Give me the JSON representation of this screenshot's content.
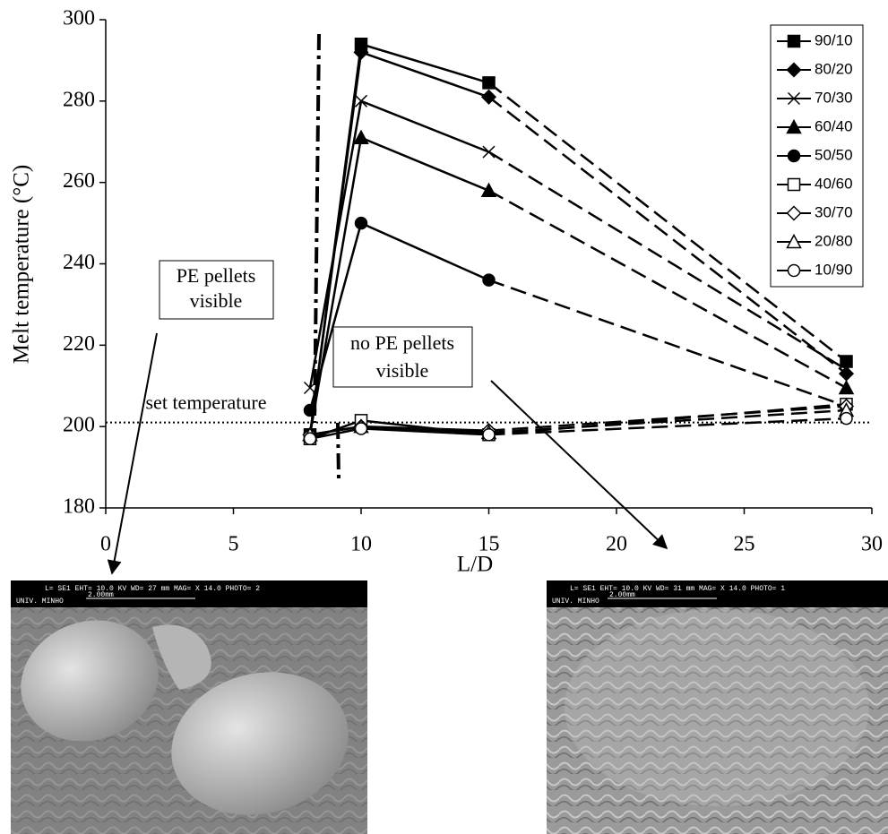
{
  "chart_data": {
    "type": "line",
    "x_label": "L/D",
    "y_label": "Melt temperature (°C)",
    "xlim": [
      0,
      30
    ],
    "ylim": [
      180,
      300
    ],
    "xticks": [
      0,
      5,
      10,
      15,
      20,
      25,
      30
    ],
    "yticks": [
      180,
      200,
      220,
      240,
      260,
      280,
      300
    ],
    "x": [
      8,
      10,
      15,
      29
    ],
    "series": [
      {
        "name": "90/10",
        "color": "#000000",
        "marker": "square",
        "filled": true,
        "values": [
          198,
          294,
          284.5,
          216
        ]
      },
      {
        "name": "80/20",
        "color": "#000000",
        "marker": "diamond",
        "filled": true,
        "values": [
          198,
          292,
          281,
          213
        ]
      },
      {
        "name": "70/30",
        "color": "#000000",
        "marker": "cross",
        "filled": true,
        "values": [
          209.5,
          280,
          267.5,
          214
        ]
      },
      {
        "name": "60/40",
        "color": "#000000",
        "marker": "triangle",
        "filled": true,
        "values": [
          198,
          271,
          258,
          209.5
        ]
      },
      {
        "name": "50/50",
        "color": "#000000",
        "marker": "circle",
        "filled": true,
        "values": [
          204,
          250,
          236,
          205
        ]
      },
      {
        "name": "40/60",
        "color": "#000000",
        "marker": "square",
        "filled": false,
        "values": [
          197,
          201.5,
          198,
          205.5
        ]
      },
      {
        "name": "30/70",
        "color": "#000000",
        "marker": "diamond",
        "filled": false,
        "values": [
          198,
          200,
          199,
          205
        ]
      },
      {
        "name": "20/80",
        "color": "#000000",
        "marker": "triangle",
        "filled": false,
        "values": [
          198,
          200,
          198.5,
          204
        ]
      },
      {
        "name": "10/90",
        "color": "#000000",
        "marker": "circle",
        "filled": false,
        "values": [
          197,
          199.5,
          198,
          202
        ]
      }
    ],
    "reference_line": {
      "value": 201,
      "label": "set temperature"
    },
    "annotations": [
      {
        "lines": [
          "PE pellets",
          "visible"
        ]
      },
      {
        "lines": [
          "no PE pellets",
          "visible"
        ]
      }
    ]
  },
  "images": [
    {
      "header": "L= SE1    EHT= 10.0 KV   WD= 27  mm     MAG= X 14.0   PHOTO= 2",
      "scale": "2.00mm",
      "lab": "UNIV. MINHO"
    },
    {
      "header": "L= SE1    EHT= 10.0 KV   WD= 31  mm     MAG= X 14.0   PHOTO= 1",
      "scale": "2.00mm",
      "lab": "UNIV. MINHO"
    }
  ]
}
